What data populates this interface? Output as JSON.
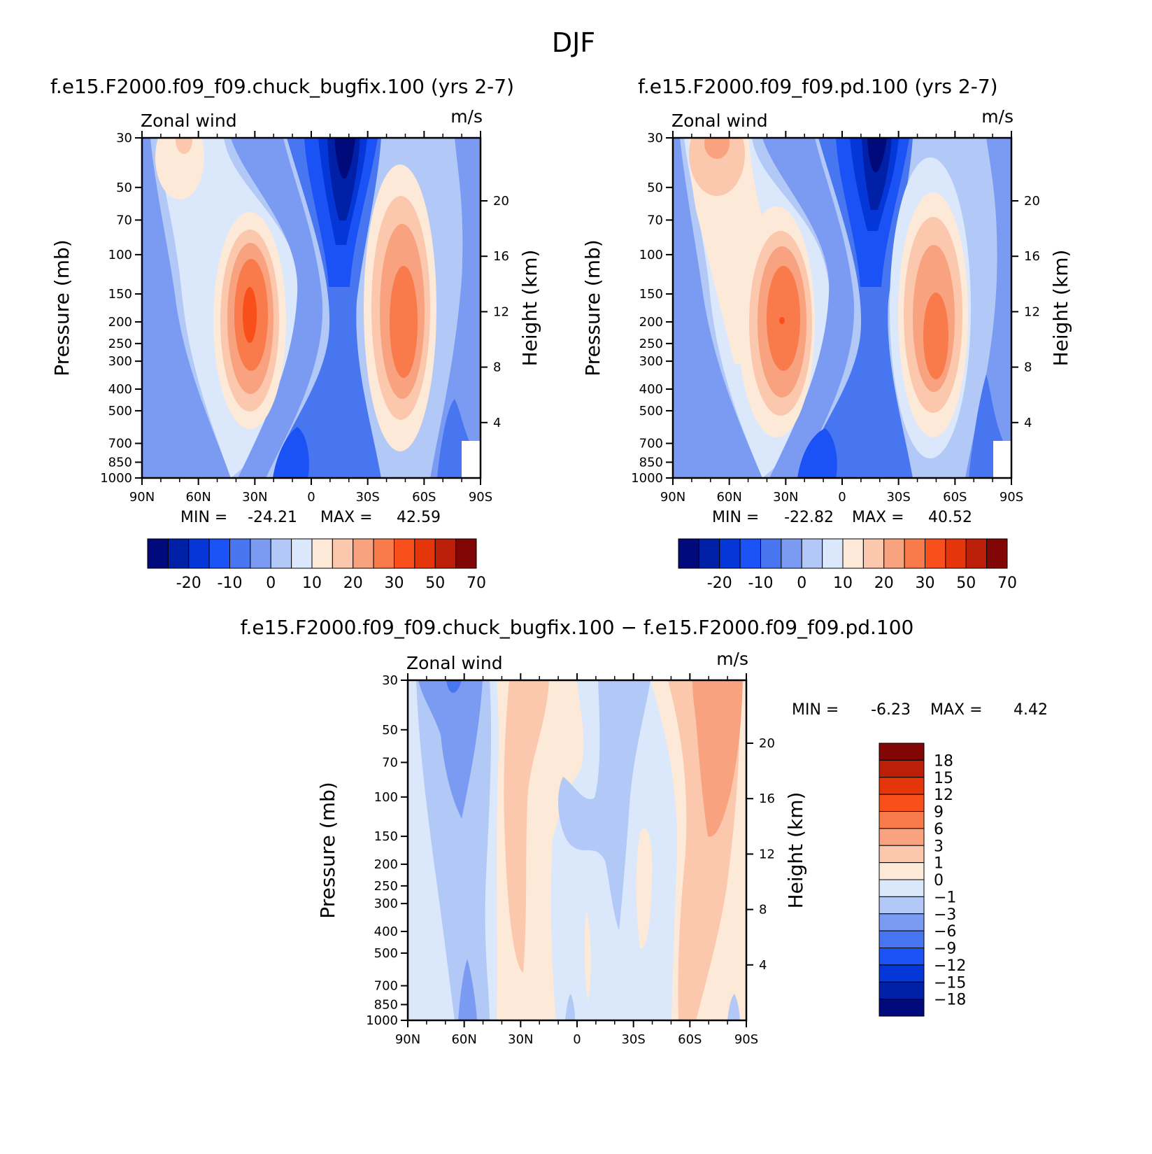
{
  "figure_title": "DJF",
  "x_ticks": [
    "90N",
    "60N",
    "30N",
    "0",
    "30S",
    "60S",
    "90S"
  ],
  "p_ticks": [
    "30",
    "50",
    "70",
    "100",
    "150",
    "200",
    "250",
    "300",
    "400",
    "500",
    "700",
    "850",
    "1000"
  ],
  "h_ticks": [
    "20",
    "16",
    "12",
    "8",
    "4"
  ],
  "left_label": "Pressure (mb)",
  "right_label": "Height (km)",
  "panel_top_label": "Zonal wind",
  "panel_units": "m/s",
  "colors": {
    "abs": [
      "#000a7a",
      "#0020a8",
      "#0537d8",
      "#1a52f5",
      "#4876f0",
      "#7b9bf2",
      "#b2c8f7",
      "#dbe8fb",
      "#fde9d8",
      "#fbc7ad",
      "#f8a27f",
      "#f97a4a",
      "#f94f1b",
      "#e4360a",
      "#bb1f09",
      "#810605"
    ],
    "diff": [
      "#000a7a",
      "#0020a8",
      "#0537d8",
      "#1a52f5",
      "#4876f0",
      "#7b9bf2",
      "#b2c8f7",
      "#dbe8fb",
      "#fde9d8",
      "#fbc7ad",
      "#f8a27f",
      "#f97a4a",
      "#f94f1b",
      "#e4360a",
      "#bb1f09",
      "#810605"
    ]
  },
  "chart_data": [
    {
      "type": "heatmap",
      "title": "f.e15.F2000.f09_f09.chuck_bugfix.100 (yrs 2-7)",
      "variable": "Zonal wind",
      "units": "m/s",
      "min_label": "MIN =",
      "min_value": "-24.21",
      "max_label": "MAX =",
      "max_value": "42.59",
      "x_categories": [
        "90N",
        "60N",
        "30N",
        "0",
        "30S",
        "60S",
        "90S"
      ],
      "pressure_levels_mb": [
        30,
        50,
        70,
        100,
        150,
        200,
        250,
        300,
        400,
        500,
        700,
        850,
        1000
      ],
      "height_km": [
        20,
        16,
        12,
        8,
        4
      ],
      "colorbar_labels": [
        "-20",
        "-10",
        "0",
        "10",
        "20",
        "30",
        "50",
        "70"
      ],
      "jets": [
        {
          "lat": 30,
          "pressure_mb": 200,
          "max_ms": 42.59
        },
        {
          "lat": -50,
          "pressure_mb": 250,
          "max_ms": 40
        }
      ],
      "easterly_core": {
        "lat": -15,
        "pressure_mb": 30,
        "min_ms": -24.21
      }
    },
    {
      "type": "heatmap",
      "title": "f.e15.F2000.f09_f09.pd.100 (yrs 2-7)",
      "variable": "Zonal wind",
      "units": "m/s",
      "min_label": "MIN =",
      "min_value": "-22.82",
      "max_label": "MAX =",
      "max_value": "40.52",
      "x_categories": [
        "90N",
        "60N",
        "30N",
        "0",
        "30S",
        "60S",
        "90S"
      ],
      "pressure_levels_mb": [
        30,
        50,
        70,
        100,
        150,
        200,
        250,
        300,
        400,
        500,
        700,
        850,
        1000
      ],
      "height_km": [
        20,
        16,
        12,
        8,
        4
      ],
      "colorbar_labels": [
        "-20",
        "-10",
        "0",
        "10",
        "20",
        "30",
        "50",
        "70"
      ],
      "jets": [
        {
          "lat": 32,
          "pressure_mb": 200,
          "max_ms": 40.52
        },
        {
          "lat": -50,
          "pressure_mb": 250,
          "max_ms": 38
        }
      ],
      "easterly_core": {
        "lat": -15,
        "pressure_mb": 30,
        "min_ms": -22.82
      }
    },
    {
      "type": "heatmap",
      "title": "f.e15.F2000.f09_f09.chuck_bugfix.100 − f.e15.F2000.f09_f09.pd.100",
      "variable": "Zonal wind",
      "units": "m/s",
      "min_label": "MIN =",
      "min_value": "-6.23",
      "max_label": "MAX =",
      "max_value": "4.42",
      "x_categories": [
        "90N",
        "60N",
        "30N",
        "0",
        "30S",
        "60S",
        "90S"
      ],
      "pressure_levels_mb": [
        30,
        50,
        70,
        100,
        150,
        200,
        250,
        300,
        400,
        500,
        700,
        850,
        1000
      ],
      "height_km": [
        20,
        16,
        12,
        8,
        4
      ],
      "colorbar_labels": [
        "18",
        "15",
        "12",
        "9",
        "6",
        "3",
        "1",
        "0",
        "−1",
        "−3",
        "−6",
        "−9",
        "−12",
        "−15",
        "−18"
      ]
    }
  ]
}
